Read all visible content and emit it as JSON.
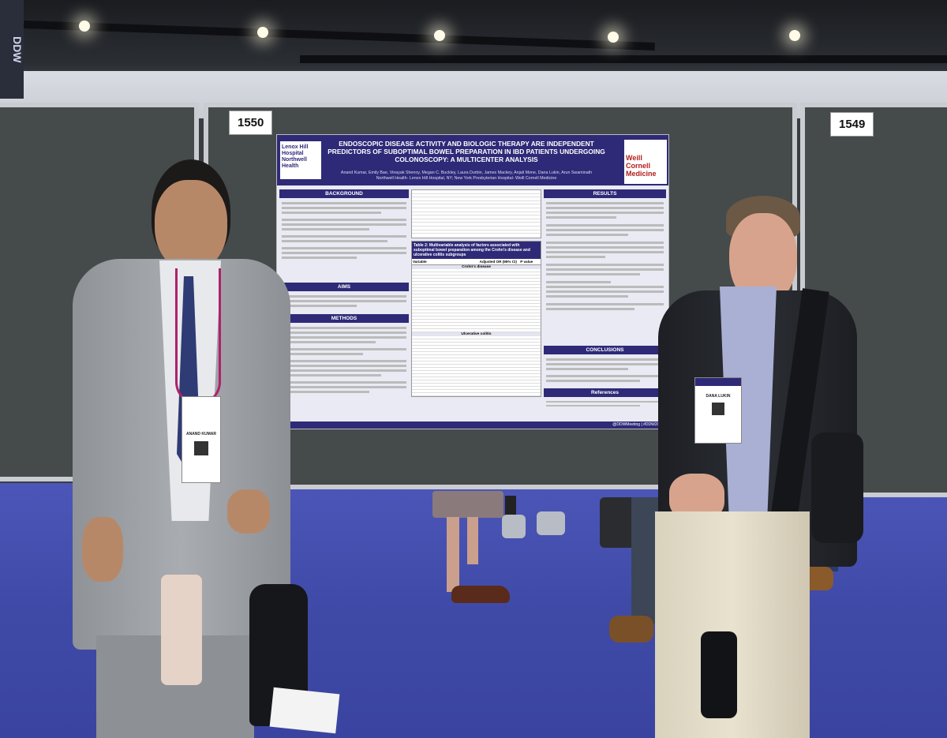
{
  "scene": "poster-presentation",
  "booths": {
    "left": "1550",
    "right": "1549"
  },
  "ddw_sign": "DDW",
  "poster": {
    "title": "ENDOSCOPIC DISEASE ACTIVITY AND BIOLOGIC THERAPY ARE INDEPENDENT PREDICTORS OF SUBOPTIMAL BOWEL PREPARATION IN IBD PATIENTS UNDERGOING COLONOSCOPY: A MULTICENTER ANALYSIS",
    "authors": "Anand Kumar, Emily Bae, Vinayak Shenoy, Megan C. Buckley, Laura Durbin, James Mackey, Anjali Mone, Dana Lukin, Arun Swaminath",
    "affiliations": "Northwell Health- Lenox Hill Hospital, NY; New York Presbyterian Hospital- Weill Cornell Medicine",
    "left_logo": "Lenox Hill Hospital Northwell Health",
    "right_logo": "Weill Cornell Medicine",
    "sections_left": [
      "BACKGROUND",
      "AIMS",
      "METHODS"
    ],
    "sections_right": [
      "RESULTS",
      "CONCLUSIONS",
      "References"
    ],
    "table2_title": "Table 2: Multivariable analysis of factors associated with suboptimal bowel preparation among the Crohn's disease and ulcerative colitis subgroups",
    "table_headers": [
      "Variable",
      "Adjusted OR (95% CI)",
      "P value"
    ],
    "table_subgroups": [
      "Crohn's disease",
      "Ulcerative colitis"
    ],
    "footer": "@DDWMeeting | #DDW2022"
  },
  "badges": {
    "left": "ANAND KUMAR",
    "right": "DANA LUKIN"
  },
  "colors": {
    "poster_header": "#2e2a78",
    "board": "#454a4a",
    "carpet": "#4049a6",
    "weill_red": "#b31b1b"
  }
}
